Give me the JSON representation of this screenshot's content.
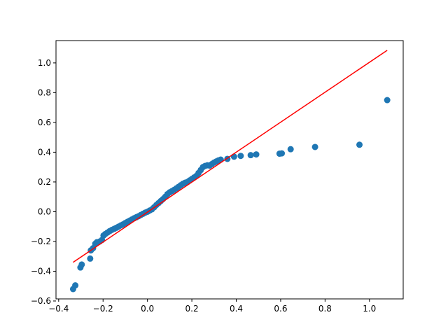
{
  "chart_data": {
    "type": "scatter",
    "title": "",
    "xlabel": "",
    "ylabel": "",
    "xlim": [
      -0.412,
      1.152
    ],
    "ylim": [
      -0.586,
      1.15
    ],
    "x_ticks": [
      -0.4,
      -0.2,
      0.0,
      0.2,
      0.4,
      0.6,
      0.8,
      1.0
    ],
    "x_tick_labels": [
      "−0.4",
      "−0.2",
      "0.0",
      "0.2",
      "0.4",
      "0.6",
      "0.8",
      "1.0"
    ],
    "y_ticks": [
      -0.6,
      -0.4,
      -0.2,
      0.0,
      0.2,
      0.4,
      0.6,
      0.8,
      1.0
    ],
    "y_tick_labels": [
      "−0.6",
      "−0.4",
      "−0.2",
      "0.0",
      "0.2",
      "0.4",
      "0.6",
      "0.8",
      "1.0"
    ],
    "grid": false,
    "series": [
      {
        "kind": "scatter",
        "color": "#1f77b4",
        "points": [
          [
            -0.335,
            -0.52
          ],
          [
            -0.325,
            -0.495
          ],
          [
            -0.302,
            -0.375
          ],
          [
            -0.296,
            -0.355
          ],
          [
            -0.258,
            -0.315
          ],
          [
            -0.255,
            -0.26
          ],
          [
            -0.245,
            -0.245
          ],
          [
            -0.235,
            -0.215
          ],
          [
            -0.228,
            -0.205
          ],
          [
            -0.215,
            -0.2
          ],
          [
            -0.205,
            -0.19
          ],
          [
            -0.198,
            -0.16
          ],
          [
            -0.19,
            -0.15
          ],
          [
            -0.18,
            -0.14
          ],
          [
            -0.17,
            -0.13
          ],
          [
            -0.16,
            -0.122
          ],
          [
            -0.15,
            -0.115
          ],
          [
            -0.14,
            -0.108
          ],
          [
            -0.13,
            -0.1
          ],
          [
            -0.12,
            -0.092
          ],
          [
            -0.11,
            -0.085
          ],
          [
            -0.1,
            -0.076
          ],
          [
            -0.09,
            -0.068
          ],
          [
            -0.08,
            -0.06
          ],
          [
            -0.07,
            -0.052
          ],
          [
            -0.06,
            -0.044
          ],
          [
            -0.05,
            -0.037
          ],
          [
            -0.04,
            -0.03
          ],
          [
            -0.03,
            -0.022
          ],
          [
            -0.02,
            -0.014
          ],
          [
            -0.01,
            -0.006
          ],
          [
            0.0,
            0.0
          ],
          [
            0.01,
            0.008
          ],
          [
            0.02,
            0.016
          ],
          [
            0.03,
            0.03
          ],
          [
            0.04,
            0.045
          ],
          [
            0.05,
            0.058
          ],
          [
            0.06,
            0.072
          ],
          [
            0.07,
            0.085
          ],
          [
            0.08,
            0.1
          ],
          [
            0.09,
            0.118
          ],
          [
            0.1,
            0.13
          ],
          [
            0.11,
            0.138
          ],
          [
            0.12,
            0.147
          ],
          [
            0.13,
            0.157
          ],
          [
            0.14,
            0.167
          ],
          [
            0.15,
            0.178
          ],
          [
            0.16,
            0.188
          ],
          [
            0.17,
            0.195
          ],
          [
            0.18,
            0.2
          ],
          [
            0.19,
            0.21
          ],
          [
            0.2,
            0.22
          ],
          [
            0.21,
            0.23
          ],
          [
            0.22,
            0.24
          ],
          [
            0.23,
            0.26
          ],
          [
            0.24,
            0.28
          ],
          [
            0.25,
            0.3
          ],
          [
            0.26,
            0.308
          ],
          [
            0.27,
            0.312
          ],
          [
            0.28,
            0.31
          ],
          [
            0.29,
            0.32
          ],
          [
            0.3,
            0.33
          ],
          [
            0.31,
            0.338
          ],
          [
            0.32,
            0.345
          ],
          [
            0.33,
            0.35
          ],
          [
            0.36,
            0.355
          ],
          [
            0.39,
            0.37
          ],
          [
            0.42,
            0.375
          ],
          [
            0.465,
            0.38
          ],
          [
            0.49,
            0.385
          ],
          [
            0.595,
            0.39
          ],
          [
            0.605,
            0.392
          ],
          [
            0.645,
            0.42
          ],
          [
            0.755,
            0.435
          ],
          [
            0.955,
            0.45
          ],
          [
            1.08,
            0.75
          ]
        ]
      },
      {
        "kind": "line",
        "color": "#ff0000",
        "points": [
          [
            -0.335,
            -0.34
          ],
          [
            1.08,
            1.085
          ]
        ]
      }
    ]
  }
}
